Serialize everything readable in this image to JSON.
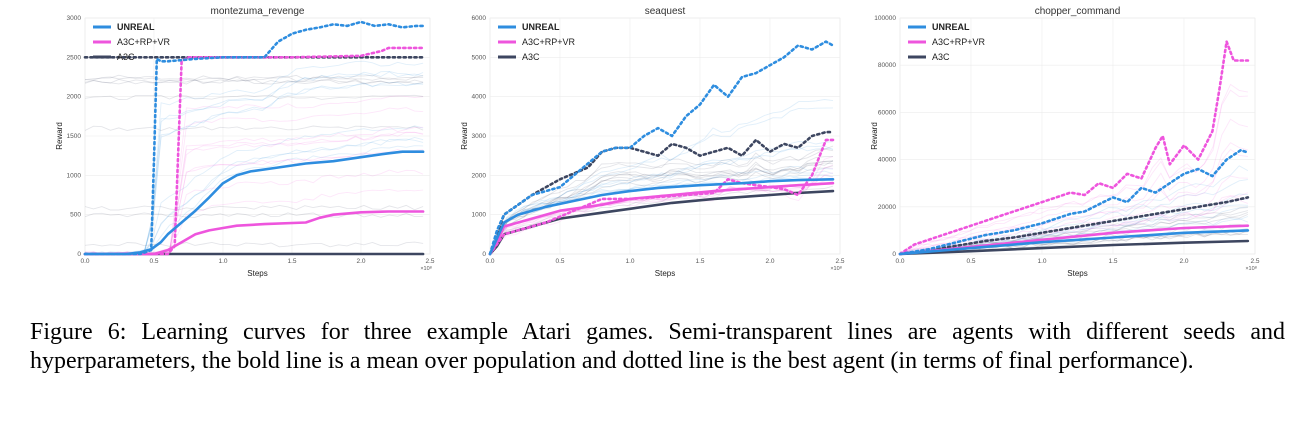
{
  "caption": "Figure 6: Learning curves for three example Atari games. Semi-transparent lines are agents with different seeds and hyperparameters, the bold line is a mean over population and dotted line is the best agent (in terms of final performance).",
  "colors": {
    "unreal": "#2e8ddf",
    "a3c_rp_vr": "#ee55dd",
    "a3c": "#3d4660"
  },
  "chart_data": [
    {
      "type": "line",
      "title": "montezuma_revenge",
      "xlabel": "Steps",
      "ylabel": "Reward",
      "x_scale_note": "×10⁸",
      "xlim": [
        0,
        2.5
      ],
      "ylim": [
        0,
        3000
      ],
      "xticks": [
        "0.0",
        "0.5",
        "1.0",
        "1.5",
        "2.0",
        "2.5"
      ],
      "yticks": [
        "0",
        "500",
        "1000",
        "1500",
        "2000",
        "2500",
        "3000"
      ],
      "legend": [
        "UNREAL",
        "A3C+RP+VR",
        "A3C"
      ],
      "legend_position": "top-left",
      "series": [
        {
          "name": "UNREAL",
          "style": "mean",
          "x": [
            0,
            0.3,
            0.4,
            0.48,
            0.55,
            0.6,
            0.7,
            0.8,
            0.9,
            1.0,
            1.1,
            1.2,
            1.4,
            1.6,
            1.8,
            2.0,
            2.2,
            2.3,
            2.45
          ],
          "y": [
            0,
            0,
            20,
            60,
            150,
            250,
            400,
            550,
            720,
            900,
            1000,
            1050,
            1100,
            1150,
            1180,
            1230,
            1280,
            1300,
            1300
          ]
        },
        {
          "name": "UNREAL",
          "style": "best",
          "x": [
            0,
            0.4,
            0.48,
            0.5,
            0.52,
            0.55,
            0.6,
            0.8,
            1.0,
            1.3,
            1.4,
            1.45,
            1.5,
            1.6,
            1.7,
            1.8,
            1.9,
            2.0,
            2.1,
            2.2,
            2.3,
            2.4,
            2.45
          ],
          "y": [
            0,
            0,
            50,
            1200,
            2480,
            2450,
            2450,
            2480,
            2500,
            2500,
            2700,
            2750,
            2800,
            2850,
            2880,
            2920,
            2900,
            2950,
            2900,
            2920,
            2880,
            2900,
            2900
          ]
        },
        {
          "name": "A3C+RP+VR",
          "style": "mean",
          "x": [
            0,
            0.5,
            0.6,
            0.7,
            0.8,
            0.9,
            1.0,
            1.1,
            1.3,
            1.6,
            1.7,
            1.8,
            2.0,
            2.2,
            2.45
          ],
          "y": [
            0,
            0,
            50,
            150,
            250,
            300,
            330,
            360,
            380,
            400,
            460,
            500,
            530,
            540,
            540
          ]
        },
        {
          "name": "A3C+RP+VR",
          "style": "best",
          "x": [
            0,
            0.6,
            0.65,
            0.68,
            0.7,
            0.75,
            1.0,
            1.5,
            2.0,
            2.15,
            2.2,
            2.3,
            2.45
          ],
          "y": [
            0,
            0,
            100,
            1500,
            2450,
            2500,
            2500,
            2500,
            2520,
            2580,
            2620,
            2620,
            2620
          ]
        },
        {
          "name": "A3C",
          "style": "mean",
          "x": [
            0,
            2.45
          ],
          "y": [
            0,
            0
          ]
        },
        {
          "name": "A3C",
          "style": "best",
          "x": [
            0,
            0.7,
            2.45
          ],
          "y": [
            2500,
            2500,
            2500
          ]
        }
      ]
    },
    {
      "type": "line",
      "title": "seaquest",
      "xlabel": "Steps",
      "ylabel": "Reward",
      "x_scale_note": "×10⁸",
      "xlim": [
        0,
        2.5
      ],
      "ylim": [
        0,
        6000
      ],
      "xticks": [
        "0.0",
        "0.5",
        "1.0",
        "1.5",
        "2.0",
        "2.5"
      ],
      "yticks": [
        "0",
        "1000",
        "2000",
        "3000",
        "4000",
        "5000",
        "6000"
      ],
      "legend": [
        "UNREAL",
        "A3C+RP+VR",
        "A3C"
      ],
      "legend_position": "top-left",
      "series": [
        {
          "name": "UNREAL",
          "style": "mean",
          "x": [
            0,
            0.05,
            0.1,
            0.2,
            0.4,
            0.6,
            0.8,
            1.0,
            1.2,
            1.5,
            1.8,
            2.0,
            2.2,
            2.45
          ],
          "y": [
            0,
            400,
            800,
            1000,
            1200,
            1350,
            1500,
            1600,
            1680,
            1750,
            1800,
            1850,
            1880,
            1900
          ]
        },
        {
          "name": "UNREAL",
          "style": "best",
          "x": [
            0,
            0.05,
            0.1,
            0.3,
            0.5,
            0.6,
            0.7,
            0.8,
            0.9,
            1.0,
            1.1,
            1.2,
            1.3,
            1.4,
            1.5,
            1.6,
            1.7,
            1.8,
            1.9,
            2.0,
            2.1,
            2.2,
            2.3,
            2.4,
            2.45
          ],
          "y": [
            0,
            600,
            1000,
            1500,
            1700,
            2000,
            2300,
            2600,
            2700,
            2700,
            3000,
            3200,
            3000,
            3500,
            3800,
            4300,
            4000,
            4500,
            4600,
            4800,
            5000,
            5300,
            5200,
            5400,
            5300
          ]
        },
        {
          "name": "A3C+RP+VR",
          "style": "mean",
          "x": [
            0,
            0.05,
            0.1,
            0.3,
            0.5,
            0.8,
            1.0,
            1.3,
            1.6,
            2.0,
            2.2,
            2.45
          ],
          "y": [
            0,
            300,
            700,
            900,
            1100,
            1250,
            1400,
            1500,
            1600,
            1700,
            1750,
            1800
          ]
        },
        {
          "name": "A3C+RP+VR",
          "style": "best",
          "x": [
            0,
            0.1,
            0.4,
            0.6,
            0.8,
            1.0,
            1.2,
            1.4,
            1.6,
            1.7,
            1.8,
            2.0,
            2.1,
            2.2,
            2.3,
            2.4,
            2.45
          ],
          "y": [
            0,
            500,
            800,
            1100,
            1400,
            1400,
            1450,
            1500,
            1550,
            1900,
            1800,
            1700,
            1650,
            1500,
            2000,
            2900,
            2900
          ]
        },
        {
          "name": "A3C",
          "style": "mean",
          "x": [
            0,
            0.05,
            0.1,
            0.3,
            0.5,
            0.8,
            1.0,
            1.3,
            1.6,
            2.0,
            2.2,
            2.45
          ],
          "y": [
            0,
            200,
            500,
            700,
            900,
            1050,
            1150,
            1300,
            1400,
            1500,
            1550,
            1600
          ]
        },
        {
          "name": "A3C",
          "style": "best",
          "x": [
            0,
            0.1,
            0.3,
            0.5,
            0.7,
            0.8,
            0.9,
            1.0,
            1.1,
            1.2,
            1.3,
            1.4,
            1.5,
            1.6,
            1.7,
            1.8,
            1.9,
            2.0,
            2.1,
            2.2,
            2.3,
            2.4,
            2.45
          ],
          "y": [
            0,
            1000,
            1500,
            1900,
            2200,
            2600,
            2700,
            2700,
            2600,
            2500,
            2800,
            2700,
            2500,
            2600,
            2700,
            2500,
            2900,
            2600,
            2800,
            2700,
            3000,
            3100,
            3100
          ]
        }
      ]
    },
    {
      "type": "line",
      "title": "chopper_command",
      "xlabel": "Steps",
      "ylabel": "Reward",
      "x_scale_note": "×10⁸",
      "xlim": [
        0,
        2.5
      ],
      "ylim": [
        0,
        100000
      ],
      "xticks": [
        "0.0",
        "0.5",
        "1.0",
        "1.5",
        "2.0",
        "2.5"
      ],
      "yticks": [
        "0",
        "20000",
        "40000",
        "60000",
        "80000",
        "100000"
      ],
      "legend": [
        "UNREAL",
        "A3C+RP+VR",
        "A3C"
      ],
      "legend_position": "top-left",
      "series": [
        {
          "name": "UNREAL",
          "style": "mean",
          "x": [
            0,
            0.5,
            1.0,
            1.5,
            2.0,
            2.45
          ],
          "y": [
            0,
            2500,
            5000,
            7000,
            9000,
            10000
          ]
        },
        {
          "name": "UNREAL",
          "style": "best",
          "x": [
            0,
            0.2,
            0.4,
            0.6,
            0.8,
            1.0,
            1.2,
            1.3,
            1.4,
            1.5,
            1.6,
            1.7,
            1.8,
            1.9,
            2.0,
            2.1,
            2.2,
            2.3,
            2.4,
            2.45
          ],
          "y": [
            0,
            2000,
            5000,
            8000,
            10000,
            13000,
            17000,
            18000,
            21000,
            24000,
            22000,
            28000,
            26000,
            30000,
            34000,
            36000,
            33000,
            40000,
            44000,
            43000
          ]
        },
        {
          "name": "A3C+RP+VR",
          "style": "mean",
          "x": [
            0,
            0.5,
            1.0,
            1.5,
            2.0,
            2.45
          ],
          "y": [
            0,
            3000,
            6000,
            9000,
            11000,
            12000
          ]
        },
        {
          "name": "A3C+RP+VR",
          "style": "best",
          "x": [
            0,
            0.1,
            0.3,
            0.5,
            0.7,
            0.9,
            1.0,
            1.1,
            1.2,
            1.3,
            1.4,
            1.5,
            1.6,
            1.7,
            1.8,
            1.85,
            1.9,
            2.0,
            2.1,
            2.2,
            2.25,
            2.3,
            2.35,
            2.45
          ],
          "y": [
            0,
            4000,
            8000,
            12000,
            16000,
            20000,
            22000,
            24000,
            26000,
            25000,
            30000,
            28000,
            34000,
            32000,
            45000,
            50000,
            38000,
            46000,
            40000,
            52000,
            70000,
            90000,
            82000,
            82000
          ]
        },
        {
          "name": "A3C",
          "style": "mean",
          "x": [
            0,
            0.5,
            1.0,
            1.5,
            2.0,
            2.45
          ],
          "y": [
            0,
            1200,
            2500,
            3800,
            4800,
            5500
          ]
        },
        {
          "name": "A3C",
          "style": "best",
          "x": [
            0,
            0.2,
            0.4,
            0.6,
            0.8,
            1.0,
            1.2,
            1.4,
            1.6,
            1.8,
            2.0,
            2.2,
            2.3,
            2.45
          ],
          "y": [
            0,
            1500,
            3500,
            5500,
            7000,
            9000,
            11000,
            13000,
            15000,
            17000,
            19000,
            21000,
            22000,
            24000
          ]
        }
      ]
    }
  ]
}
